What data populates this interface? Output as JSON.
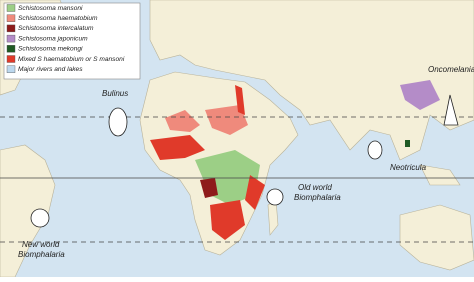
{
  "legend": {
    "items": [
      {
        "label": "Schistosoma mansoni",
        "color": "#9ccf86"
      },
      {
        "label": "Schistosoma haematobium",
        "color": "#ef8a7c"
      },
      {
        "label": "Schistosoma intercalatum",
        "color": "#8e1b1b"
      },
      {
        "label": "Schistosoma japonicum",
        "color": "#b48cc8"
      },
      {
        "label": "Schistosoma mekongi",
        "color": "#1f5a24"
      },
      {
        "label": "Mixed S haematobium or S mansoni",
        "color": "#e03a2a"
      },
      {
        "label": "Major rivers and lakes",
        "color": "#bcd8ee"
      }
    ]
  },
  "snails": [
    {
      "label_lines": [
        "Bulinus"
      ]
    },
    {
      "label_lines": [
        "Oncomelania"
      ]
    },
    {
      "label_lines": [
        "Neotricula"
      ]
    },
    {
      "label_lines": [
        "Old world",
        "Biomphalaria"
      ]
    },
    {
      "label_lines": [
        "New world",
        "Biomphalaria"
      ]
    }
  ]
}
